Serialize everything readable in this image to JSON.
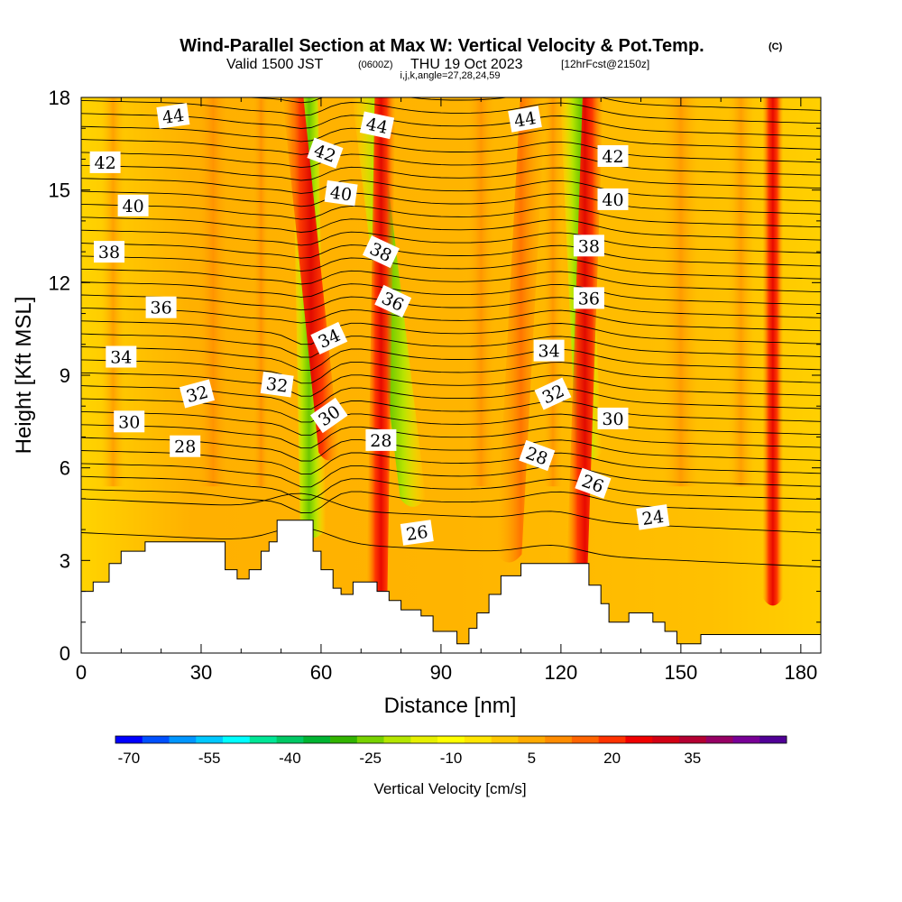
{
  "title_main": "Wind-Parallel Section at Max W: Vertical Velocity & Pot.Temp.",
  "title_mark": "(C)",
  "subtitle_valid": "Valid 1500 JST",
  "subtitle_z": "(0600Z)",
  "subtitle_date": "THU 19 Oct 2023",
  "subtitle_fcst": "[12hrFcst@2150z]",
  "subtitle_idx": "i,j,k,angle=27,28,24,59",
  "chart_data": {
    "type": "heatmap",
    "xlabel": "Distance [nm]",
    "ylabel": "Height [Kft MSL]",
    "xlim": [
      0,
      185
    ],
    "ylim": [
      0,
      18
    ],
    "xticks": [
      "0",
      "30",
      "60",
      "90",
      "120",
      "150",
      "180"
    ],
    "yticks": [
      "0",
      "3",
      "6",
      "9",
      "12",
      "15",
      "18"
    ],
    "colorbar": {
      "label": "Vertical Velocity [cm/s]",
      "tick_labels": [
        "-70",
        "-55",
        "-40",
        "-25",
        "-10",
        "5",
        "20",
        "35"
      ],
      "colors": [
        "#0000ff",
        "#0050ff",
        "#0096ff",
        "#00c8ff",
        "#00ffff",
        "#00e696",
        "#00c864",
        "#00b432",
        "#32b400",
        "#78d200",
        "#b4e600",
        "#e6f000",
        "#ffff00",
        "#ffe600",
        "#ffc800",
        "#ffaa00",
        "#ff8c00",
        "#ff6400",
        "#ff3200",
        "#f00000",
        "#d20014",
        "#b40032",
        "#960064",
        "#780096",
        "#500096"
      ]
    },
    "series": [
      {
        "name": "30",
        "type": "contour-label",
        "x": 11,
        "y": 7.5
      },
      {
        "name": "28",
        "type": "contour-label",
        "x": 26,
        "y": 6.7
      }
    ],
    "contour_labels": [
      {
        "text": "44",
        "x": 23,
        "y": 17.4,
        "angle": -8
      },
      {
        "text": "44",
        "x": 74,
        "y": 17.1,
        "angle": 12
      },
      {
        "text": "44",
        "x": 111,
        "y": 17.3,
        "angle": -10
      },
      {
        "text": "42",
        "x": 6,
        "y": 15.9,
        "angle": 0
      },
      {
        "text": "42",
        "x": 61,
        "y": 16.2,
        "angle": 20
      },
      {
        "text": "42",
        "x": 133,
        "y": 16.1,
        "angle": 0
      },
      {
        "text": "40",
        "x": 13,
        "y": 14.5,
        "angle": 0
      },
      {
        "text": "40",
        "x": 65,
        "y": 14.9,
        "angle": 8
      },
      {
        "text": "40",
        "x": 133,
        "y": 14.7,
        "angle": 0
      },
      {
        "text": "38",
        "x": 7,
        "y": 13.0,
        "angle": 0
      },
      {
        "text": "38",
        "x": 75,
        "y": 13.0,
        "angle": 25
      },
      {
        "text": "38",
        "x": 127,
        "y": 13.2,
        "angle": 0
      },
      {
        "text": "36",
        "x": 20,
        "y": 11.2,
        "angle": 0
      },
      {
        "text": "36",
        "x": 78,
        "y": 11.4,
        "angle": 25
      },
      {
        "text": "36",
        "x": 127,
        "y": 11.5,
        "angle": 0
      },
      {
        "text": "34",
        "x": 10,
        "y": 9.6,
        "angle": 0
      },
      {
        "text": "34",
        "x": 62,
        "y": 10.2,
        "angle": -25
      },
      {
        "text": "34",
        "x": 117,
        "y": 9.8,
        "angle": 0
      },
      {
        "text": "32",
        "x": 29,
        "y": 8.4,
        "angle": -15
      },
      {
        "text": "32",
        "x": 49,
        "y": 8.7,
        "angle": 8
      },
      {
        "text": "32",
        "x": 118,
        "y": 8.4,
        "angle": -25
      },
      {
        "text": "30",
        "x": 12,
        "y": 7.5,
        "angle": 0
      },
      {
        "text": "30",
        "x": 62,
        "y": 7.7,
        "angle": -35
      },
      {
        "text": "30",
        "x": 133,
        "y": 7.6,
        "angle": 0
      },
      {
        "text": "28",
        "x": 26,
        "y": 6.7,
        "angle": 0
      },
      {
        "text": "28",
        "x": 75,
        "y": 6.9,
        "angle": 0
      },
      {
        "text": "28",
        "x": 114,
        "y": 6.4,
        "angle": 20
      },
      {
        "text": "26",
        "x": 84,
        "y": 3.9,
        "angle": -8
      },
      {
        "text": "26",
        "x": 128,
        "y": 5.5,
        "angle": 20
      },
      {
        "text": "24",
        "x": 143,
        "y": 4.4,
        "angle": -8
      }
    ],
    "terrain_profile": [
      [
        0,
        2
      ],
      [
        3,
        2
      ],
      [
        3,
        2.3
      ],
      [
        7,
        2.3
      ],
      [
        7,
        2.9
      ],
      [
        10,
        2.9
      ],
      [
        10,
        3.3
      ],
      [
        16,
        3.3
      ],
      [
        16,
        3.6
      ],
      [
        36,
        3.6
      ],
      [
        36,
        2.7
      ],
      [
        39,
        2.7
      ],
      [
        39,
        2.4
      ],
      [
        42,
        2.4
      ],
      [
        42,
        2.7
      ],
      [
        45,
        2.7
      ],
      [
        45,
        3.3
      ],
      [
        47,
        3.3
      ],
      [
        47,
        3.6
      ],
      [
        49,
        3.6
      ],
      [
        49,
        4.3
      ],
      [
        58,
        4.3
      ],
      [
        58,
        3.3
      ],
      [
        60,
        3.3
      ],
      [
        60,
        2.7
      ],
      [
        63,
        2.7
      ],
      [
        63,
        2.1
      ],
      [
        65,
        2.1
      ],
      [
        65,
        1.9
      ],
      [
        68,
        1.9
      ],
      [
        68,
        2.3
      ],
      [
        74,
        2.3
      ],
      [
        74,
        2.0
      ],
      [
        77,
        2.0
      ],
      [
        77,
        1.7
      ],
      [
        80,
        1.7
      ],
      [
        80,
        1.4
      ],
      [
        85,
        1.4
      ],
      [
        85,
        1.2
      ],
      [
        88,
        1.2
      ],
      [
        88,
        0.7
      ],
      [
        94,
        0.7
      ],
      [
        94,
        0.3
      ],
      [
        97,
        0.3
      ],
      [
        97,
        0.8
      ],
      [
        99,
        0.8
      ],
      [
        99,
        1.3
      ],
      [
        102,
        1.3
      ],
      [
        102,
        1.9
      ],
      [
        105,
        1.9
      ],
      [
        105,
        2.5
      ],
      [
        110,
        2.5
      ],
      [
        110,
        2.9
      ],
      [
        127,
        2.9
      ],
      [
        127,
        2.2
      ],
      [
        130,
        2.2
      ],
      [
        130,
        1.6
      ],
      [
        132,
        1.6
      ],
      [
        132,
        1.0
      ],
      [
        137,
        1.0
      ],
      [
        137,
        1.3
      ],
      [
        143,
        1.3
      ],
      [
        143,
        1.0
      ],
      [
        146,
        1.0
      ],
      [
        146,
        0.7
      ],
      [
        149,
        0.7
      ],
      [
        149,
        0.3
      ],
      [
        155,
        0.3
      ],
      [
        155,
        0.6
      ],
      [
        185,
        0.6
      ]
    ],
    "velocity_bands": [
      {
        "name": "downdraft",
        "x_top": 56,
        "x_bottom": 58,
        "y_bottom": 4.0,
        "value": -20
      },
      {
        "name": "updraft",
        "x_top": 53,
        "x_bottom": 62,
        "y_bottom": 6.5,
        "value": 25
      },
      {
        "name": "downdraft",
        "x_top": 71,
        "x_bottom": 83,
        "y_bottom": 5.0,
        "value": -15
      },
      {
        "name": "updraft",
        "x_top": 76,
        "x_bottom": 74,
        "y_bottom": 2.0,
        "value": 20
      },
      {
        "name": "updraft",
        "x_top": 113,
        "x_bottom": 107,
        "y_bottom": 3.2,
        "value": 12
      },
      {
        "name": "downdraft",
        "x_top": 123,
        "x_bottom": 127,
        "y_bottom": 6.5,
        "value": -12
      },
      {
        "name": "updraft",
        "x_top": 128,
        "x_bottom": 124,
        "y_bottom": 2.5,
        "value": 20
      },
      {
        "name": "updraft",
        "x_top": 173,
        "x_bottom": 173,
        "y_bottom": 1.8,
        "value": 20
      }
    ]
  }
}
